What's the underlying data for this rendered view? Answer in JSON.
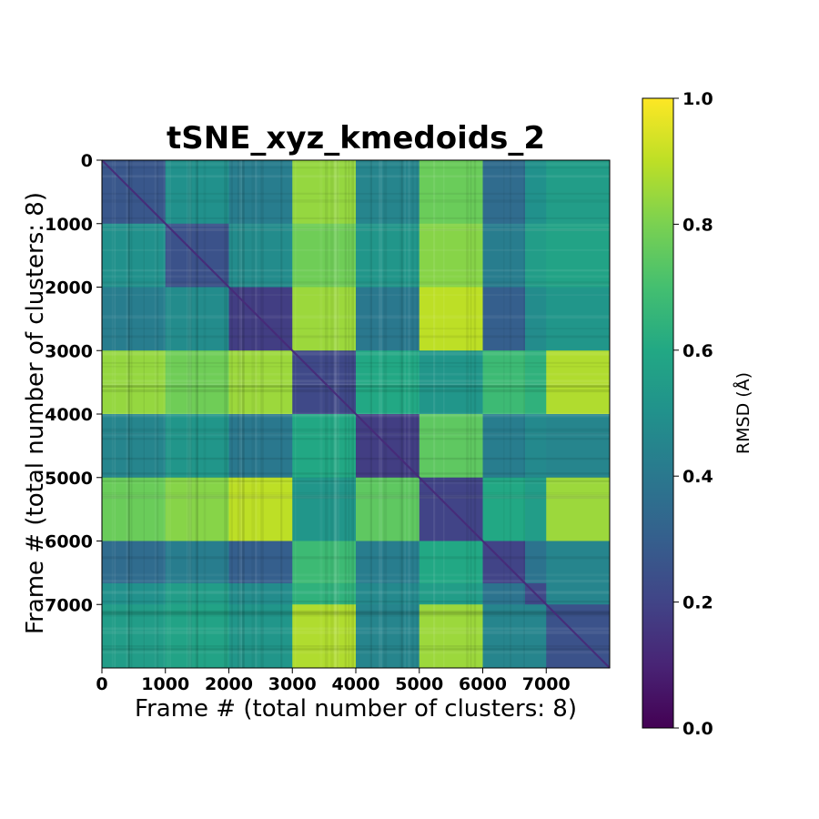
{
  "chart_data": {
    "type": "heatmap",
    "title": "tSNE_xyz_kmedoids_2",
    "xlabel": "Frame # (total number of clusters: 8)",
    "ylabel": "Frame # (total number of clusters: 8)",
    "colorbar_label": "RMSD (Å)",
    "colormap": "viridis",
    "frame_range": [
      0,
      8000
    ],
    "x_ticks": [
      0,
      1000,
      2000,
      3000,
      4000,
      5000,
      6000,
      7000
    ],
    "y_ticks": [
      0,
      1000,
      2000,
      3000,
      4000,
      5000,
      6000,
      7000
    ],
    "x_tick_labels": [
      "0",
      "1000",
      "2000",
      "3000",
      "4000",
      "5000",
      "6000",
      "7000"
    ],
    "y_tick_labels": [
      "0",
      "1000",
      "2000",
      "3000",
      "4000",
      "5000",
      "6000",
      "7000"
    ],
    "colorbar_ticks": [
      0.0,
      0.2,
      0.4,
      0.6,
      0.8,
      1.0
    ],
    "colorbar_tick_labels": [
      "0.0",
      "0.2",
      "0.4",
      "0.6",
      "0.8",
      "1.0"
    ],
    "value_range": [
      0.0,
      1.0
    ],
    "block_boundaries": [
      0,
      1000,
      2000,
      3000,
      4000,
      5000,
      6000,
      6667,
      7000,
      8000
    ],
    "block_rmsd_matrix": [
      [
        0.27,
        0.5,
        0.42,
        0.84,
        0.45,
        0.77,
        0.35,
        0.5,
        0.55
      ],
      [
        0.5,
        0.25,
        0.48,
        0.78,
        0.52,
        0.82,
        0.42,
        0.55,
        0.58
      ],
      [
        0.42,
        0.48,
        0.18,
        0.85,
        0.4,
        0.9,
        0.3,
        0.48,
        0.52
      ],
      [
        0.84,
        0.78,
        0.85,
        0.22,
        0.6,
        0.52,
        0.68,
        0.64,
        0.88
      ],
      [
        0.45,
        0.52,
        0.4,
        0.6,
        0.18,
        0.75,
        0.42,
        0.47,
        0.45
      ],
      [
        0.77,
        0.82,
        0.9,
        0.52,
        0.75,
        0.2,
        0.6,
        0.55,
        0.85
      ],
      [
        0.35,
        0.42,
        0.3,
        0.68,
        0.42,
        0.6,
        0.2,
        0.38,
        0.45
      ],
      [
        0.5,
        0.55,
        0.48,
        0.64,
        0.47,
        0.55,
        0.38,
        0.22,
        0.45
      ],
      [
        0.55,
        0.58,
        0.52,
        0.88,
        0.45,
        0.85,
        0.45,
        0.45,
        0.25
      ]
    ]
  }
}
